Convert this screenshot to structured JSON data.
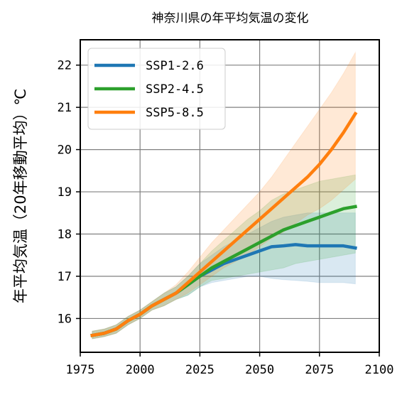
{
  "chart_data": {
    "type": "line",
    "title": "神奈川県の年平均気温の変化",
    "xlabel": "",
    "ylabel": "年平均気温（20年移動平均）℃",
    "xlim": [
      1975,
      2100
    ],
    "ylim": [
      15.2,
      22.6
    ],
    "xticks": [
      1975,
      2000,
      2025,
      2050,
      2075,
      2100
    ],
    "yticks": [
      16,
      17,
      18,
      19,
      20,
      21,
      22
    ],
    "grid": true,
    "legend_position": "top-left",
    "series": [
      {
        "name": "SSP1-2.6",
        "color": "#1f77b4",
        "x": [
          1980,
          1985,
          1990,
          1995,
          2000,
          2005,
          2010,
          2015,
          2020,
          2025,
          2030,
          2035,
          2040,
          2045,
          2050,
          2055,
          2060,
          2065,
          2070,
          2075,
          2080,
          2085,
          2090
        ],
        "values": [
          15.6,
          15.65,
          15.75,
          15.95,
          16.1,
          16.3,
          16.45,
          16.6,
          16.8,
          17.0,
          17.15,
          17.3,
          17.4,
          17.5,
          17.6,
          17.7,
          17.72,
          17.75,
          17.72,
          17.72,
          17.72,
          17.72,
          17.67
        ],
        "lower": [
          15.52,
          15.57,
          15.65,
          15.85,
          16.0,
          16.2,
          16.3,
          16.45,
          16.55,
          16.75,
          16.85,
          16.9,
          16.95,
          17.0,
          17.0,
          16.95,
          16.92,
          16.9,
          16.88,
          16.85,
          16.85,
          16.85,
          16.82
        ],
        "upper": [
          15.7,
          15.75,
          15.85,
          16.05,
          16.2,
          16.4,
          16.6,
          16.75,
          17.0,
          17.3,
          17.5,
          17.7,
          17.85,
          18.0,
          18.15,
          18.3,
          18.4,
          18.45,
          18.5,
          18.5,
          18.5,
          18.5,
          18.5
        ]
      },
      {
        "name": "SSP2-4.5",
        "color": "#2ca02c",
        "x": [
          1980,
          1985,
          1990,
          1995,
          2000,
          2005,
          2010,
          2015,
          2020,
          2025,
          2030,
          2035,
          2040,
          2045,
          2050,
          2055,
          2060,
          2065,
          2070,
          2075,
          2080,
          2085,
          2090
        ],
        "values": [
          15.6,
          15.65,
          15.75,
          15.95,
          16.1,
          16.3,
          16.45,
          16.6,
          16.8,
          17.0,
          17.2,
          17.35,
          17.5,
          17.65,
          17.8,
          17.95,
          18.1,
          18.2,
          18.3,
          18.4,
          18.5,
          18.6,
          18.65
        ],
        "lower": [
          15.52,
          15.57,
          15.65,
          15.85,
          16.0,
          16.2,
          16.3,
          16.45,
          16.55,
          16.75,
          16.9,
          16.95,
          17.0,
          17.05,
          17.1,
          17.15,
          17.2,
          17.3,
          17.35,
          17.4,
          17.45,
          17.5,
          17.55
        ],
        "upper": [
          15.7,
          15.75,
          15.85,
          16.05,
          16.2,
          16.4,
          16.6,
          16.75,
          17.0,
          17.3,
          17.6,
          17.85,
          18.1,
          18.35,
          18.55,
          18.8,
          18.95,
          19.05,
          19.15,
          19.25,
          19.3,
          19.35,
          19.4
        ]
      },
      {
        "name": "SSP5-8.5",
        "color": "#ff7f0e",
        "x": [
          1980,
          1985,
          1990,
          1995,
          2000,
          2005,
          2010,
          2015,
          2020,
          2025,
          2030,
          2035,
          2040,
          2045,
          2050,
          2055,
          2060,
          2065,
          2070,
          2075,
          2080,
          2085,
          2090
        ],
        "values": [
          15.6,
          15.65,
          15.75,
          15.95,
          16.1,
          16.3,
          16.45,
          16.6,
          16.85,
          17.1,
          17.35,
          17.6,
          17.85,
          18.1,
          18.35,
          18.6,
          18.85,
          19.1,
          19.35,
          19.65,
          20.0,
          20.4,
          20.85
        ],
        "lower": [
          15.52,
          15.57,
          15.65,
          15.85,
          16.0,
          16.2,
          16.3,
          16.45,
          16.6,
          16.8,
          17.0,
          17.2,
          17.35,
          17.5,
          17.7,
          17.9,
          18.05,
          18.25,
          18.45,
          18.6,
          18.8,
          19.05,
          19.3
        ],
        "upper": [
          15.7,
          15.75,
          15.85,
          16.05,
          16.2,
          16.4,
          16.6,
          16.8,
          17.1,
          17.45,
          17.8,
          18.1,
          18.4,
          18.7,
          19.0,
          19.35,
          19.75,
          20.15,
          20.55,
          20.95,
          21.35,
          21.8,
          22.3
        ]
      }
    ]
  }
}
